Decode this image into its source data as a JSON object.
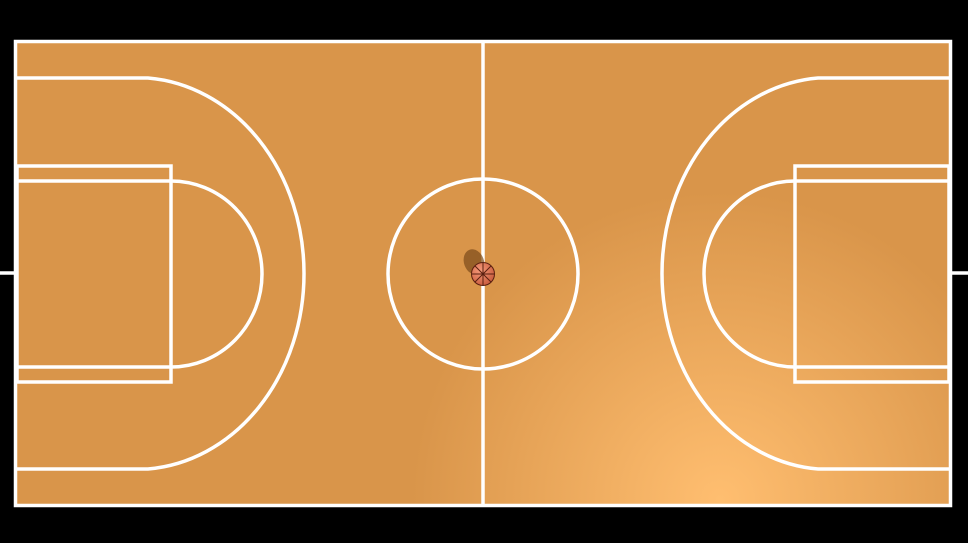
{
  "scene": {
    "background_color": "#000000",
    "floor_color_base": "#d9954a",
    "floor_color_light": "#ffbe70",
    "line_color": "#ffffff",
    "ball_color": "#e8795a",
    "ball_seam_color": "#5a1f10",
    "shadow_color": "#7a4a1a"
  },
  "icons": {
    "ball": "basketball-icon"
  }
}
